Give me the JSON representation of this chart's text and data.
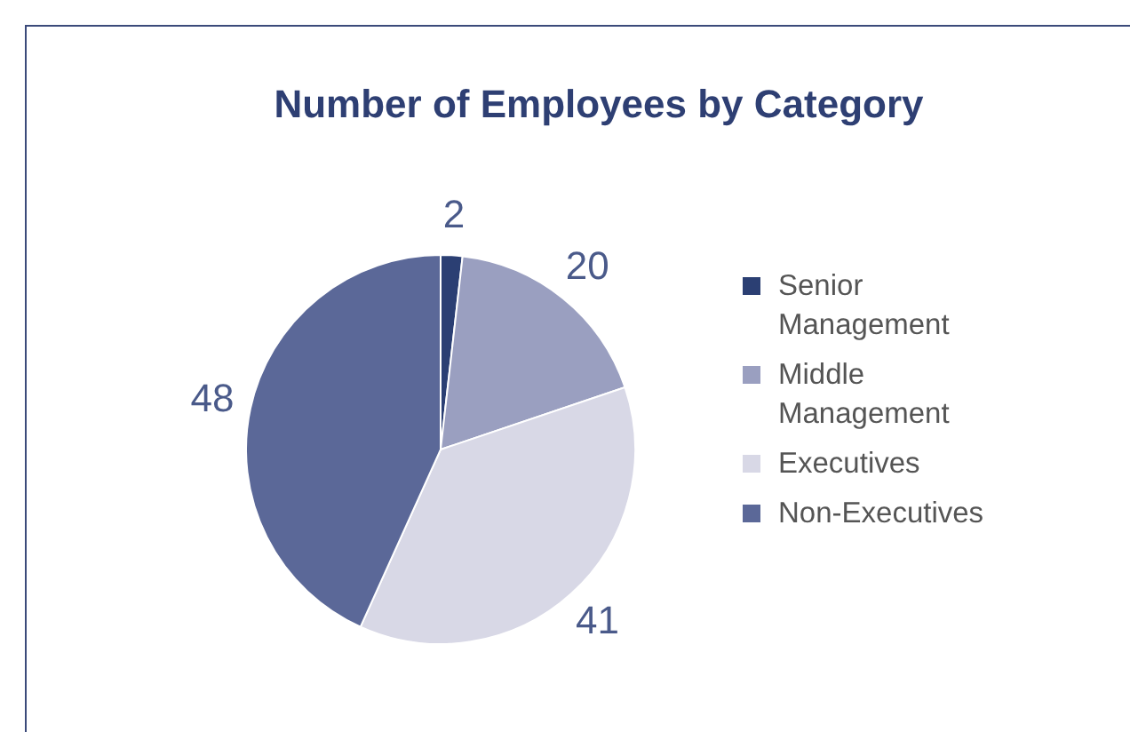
{
  "chart_data": {
    "type": "pie",
    "title": "Number of Employees by Category",
    "categories": [
      "Senior Management",
      "Middle Management",
      "Executives",
      "Non-Executives"
    ],
    "values": [
      2,
      20,
      41,
      48
    ],
    "colors": [
      "#2b3f73",
      "#9a9fc0",
      "#d8d8e6",
      "#5b6898"
    ],
    "data_labels": true,
    "legend": "right"
  }
}
